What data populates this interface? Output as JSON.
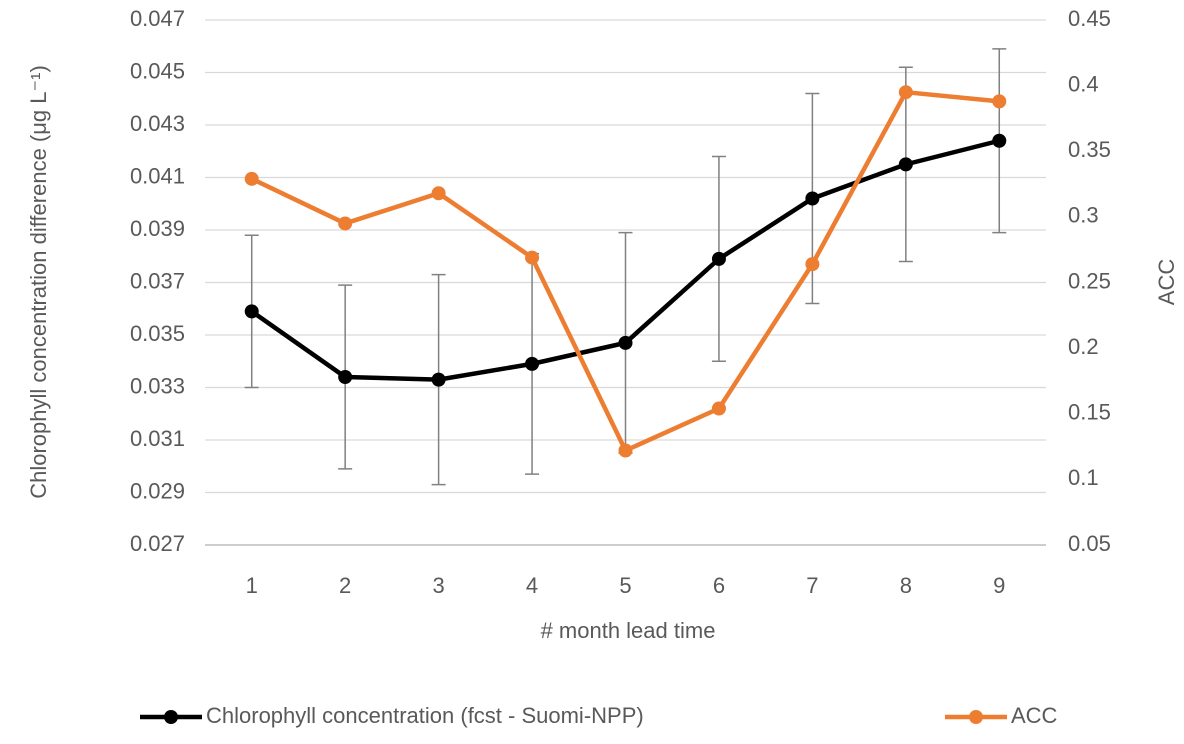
{
  "chart_data": {
    "type": "line",
    "x_label": "# month lead time",
    "y_label": "Chlorophyll concentration  difference (μg L⁻¹)",
    "y2_label": "ACC",
    "categories": [
      "1",
      "2",
      "3",
      "4",
      "5",
      "6",
      "7",
      "8",
      "9"
    ],
    "ylim": [
      0.027,
      0.047
    ],
    "yticks": [
      0.027,
      0.029,
      0.031,
      0.033,
      0.035,
      0.037,
      0.039,
      0.041,
      0.043,
      0.045,
      0.047
    ],
    "y2lim": [
      0.05,
      0.45
    ],
    "y2ticks": [
      0.05,
      0.1,
      0.15,
      0.2,
      0.25,
      0.3,
      0.35,
      0.4,
      0.45
    ],
    "grid": true,
    "legend": "bottom",
    "series": [
      {
        "name": "Chlorophyll concentration (fcst - Suomi-NPP)",
        "color": "#000000",
        "values": [
          0.0359,
          0.0334,
          0.0333,
          0.0339,
          0.0347,
          0.0379,
          0.0402,
          0.0415,
          0.0424
        ],
        "errors": [
          0.0029,
          0.0035,
          0.004,
          0.0042,
          0.0042,
          0.0039,
          0.004,
          0.0037,
          0.0035
        ]
      },
      {
        "name": "ACC",
        "color": "#ed7d31",
        "axis": "y2",
        "values": [
          0.329,
          0.295,
          0.318,
          0.269,
          0.122,
          0.154,
          0.264,
          0.395,
          0.388
        ]
      }
    ]
  }
}
